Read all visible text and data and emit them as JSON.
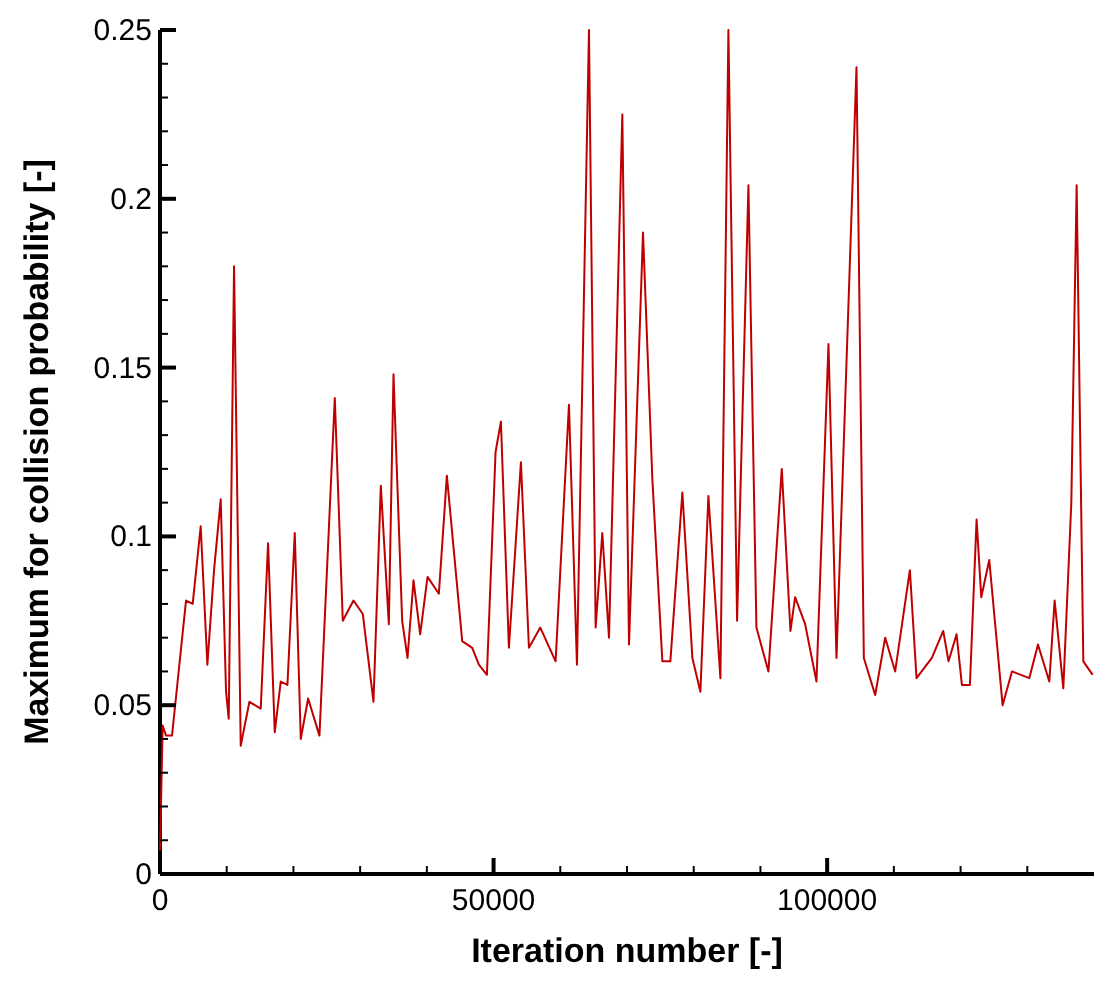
{
  "chart_data": {
    "type": "line",
    "xlabel": "Iteration number [-]",
    "ylabel": "Maximum for collision probability [-]",
    "xlim": [
      0,
      140000
    ],
    "ylim": [
      0,
      0.25
    ],
    "xticks": [
      0,
      {
        "value": 10000,
        "label": null
      },
      {
        "value": 20000,
        "label": null
      },
      {
        "value": 30000,
        "label": null
      },
      {
        "value": 40000,
        "label": null
      },
      50000,
      {
        "value": 60000,
        "label": null
      },
      {
        "value": 70000,
        "label": null
      },
      {
        "value": 80000,
        "label": null
      },
      {
        "value": 90000,
        "label": null
      },
      100000,
      {
        "value": 110000,
        "label": null
      },
      {
        "value": 120000,
        "label": null
      },
      {
        "value": 130000,
        "label": null
      }
    ],
    "yticks": [
      0,
      {
        "value": 0.01,
        "label": null
      },
      {
        "value": 0.02,
        "label": null
      },
      {
        "value": 0.03,
        "label": null
      },
      {
        "value": 0.04,
        "label": null
      },
      0.05,
      {
        "value": 0.06,
        "label": null
      },
      {
        "value": 0.07,
        "label": null
      },
      {
        "value": 0.08,
        "label": null
      },
      {
        "value": 0.09,
        "label": null
      },
      0.1,
      {
        "value": 0.11,
        "label": null
      },
      {
        "value": 0.12,
        "label": null
      },
      {
        "value": 0.13,
        "label": null
      },
      {
        "value": 0.14,
        "label": null
      },
      0.15,
      {
        "value": 0.16,
        "label": null
      },
      {
        "value": 0.17,
        "label": null
      },
      {
        "value": 0.18,
        "label": null
      },
      {
        "value": 0.19,
        "label": null
      },
      0.2,
      {
        "value": 0.21,
        "label": null
      },
      {
        "value": 0.22,
        "label": null
      },
      {
        "value": 0.23,
        "label": null
      },
      {
        "value": 0.24,
        "label": null
      },
      0.25
    ],
    "grid": false,
    "marker": "none",
    "line_style": "solid",
    "series": [
      {
        "color": "#c00000",
        "x": [
          0,
          400,
          900,
          1800,
          3900,
          4900,
          6100,
          7100,
          8100,
          9100,
          9900,
          10300,
          11100,
          12100,
          13400,
          15100,
          16200,
          17200,
          18100,
          19100,
          20200,
          21100,
          22200,
          23900,
          26200,
          27400,
          29000,
          30400,
          32000,
          33100,
          34300,
          35000,
          36300,
          37100,
          38000,
          39000,
          40100,
          41800,
          43000,
          45300,
          46800,
          47800,
          49000,
          50300,
          51100,
          52300,
          54100,
          55300,
          57000,
          59300,
          61300,
          62500,
          64300,
          65300,
          66300,
          67300,
          69300,
          70300,
          72400,
          73800,
          75300,
          76500,
          78300,
          79800,
          81000,
          82200,
          84000,
          85200,
          86500,
          88200,
          89400,
          91200,
          93200,
          94500,
          95200,
          96700,
          98400,
          100200,
          101400,
          104400,
          105500,
          107200,
          108700,
          110200,
          112400,
          113400,
          115700,
          117400,
          118200,
          119400,
          120200,
          121400,
          122400,
          123100,
          124300,
          126300,
          127700,
          130300,
          131600,
          133300,
          134100,
          135400,
          136600,
          137400,
          138400,
          139800
        ],
        "values": [
          0.007,
          0.044,
          0.041,
          0.041,
          0.081,
          0.08,
          0.103,
          0.062,
          0.09,
          0.111,
          0.054,
          0.046,
          0.18,
          0.038,
          0.051,
          0.049,
          0.098,
          0.042,
          0.057,
          0.056,
          0.101,
          0.04,
          0.052,
          0.041,
          0.141,
          0.075,
          0.081,
          0.077,
          0.051,
          0.115,
          0.074,
          0.148,
          0.075,
          0.064,
          0.087,
          0.071,
          0.088,
          0.083,
          0.118,
          0.069,
          0.067,
          0.062,
          0.059,
          0.125,
          0.134,
          0.067,
          0.122,
          0.067,
          0.073,
          0.063,
          0.139,
          0.062,
          0.25,
          0.073,
          0.101,
          0.07,
          0.225,
          0.068,
          0.19,
          0.117,
          0.063,
          0.063,
          0.113,
          0.064,
          0.054,
          0.112,
          0.058,
          0.25,
          0.075,
          0.204,
          0.073,
          0.06,
          0.12,
          0.072,
          0.082,
          0.074,
          0.057,
          0.157,
          0.064,
          0.239,
          0.064,
          0.053,
          0.07,
          0.06,
          0.09,
          0.058,
          0.064,
          0.072,
          0.063,
          0.071,
          0.056,
          0.056,
          0.105,
          0.082,
          0.093,
          0.05,
          0.06,
          0.058,
          0.068,
          0.057,
          0.081,
          0.055,
          0.11,
          0.204,
          0.063,
          0.059
        ]
      }
    ]
  }
}
